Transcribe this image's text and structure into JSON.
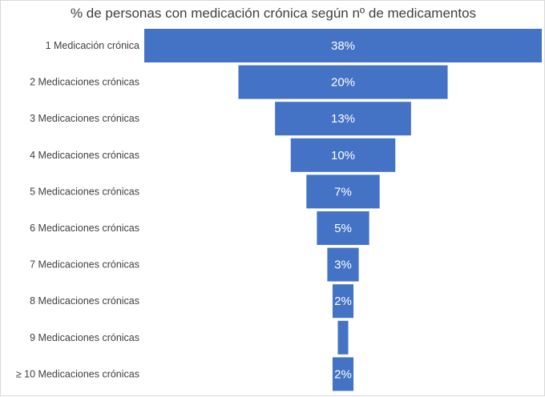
{
  "chart_data": {
    "type": "bar",
    "orientation": "horizontal-funnel",
    "title": "% de personas con medicación crónica según nº de medicamentos",
    "categories": [
      "1 Medicación crónica",
      "2 Medicaciones crónicas",
      "3 Medicaciones crónicas",
      "4 Medicaciones crónicas",
      "5 Medicaciones crónicas",
      "6 Medicaciones crónicas",
      "7 Medicaciones crónicas",
      "8 Medicaciones crónicas",
      "9 Medicaciones crónicas",
      "≥ 10 Medicaciones crónicas"
    ],
    "values": [
      38,
      20,
      13,
      10,
      7,
      5,
      3,
      2,
      1,
      2
    ],
    "data_labels": [
      "38%",
      "20%",
      "13%",
      "10%",
      "7%",
      "5%",
      "3%",
      "2%",
      "",
      "2%"
    ],
    "bar_color": "#4472c4",
    "label_color": "#ffffff",
    "legend": "none",
    "grid": false
  }
}
